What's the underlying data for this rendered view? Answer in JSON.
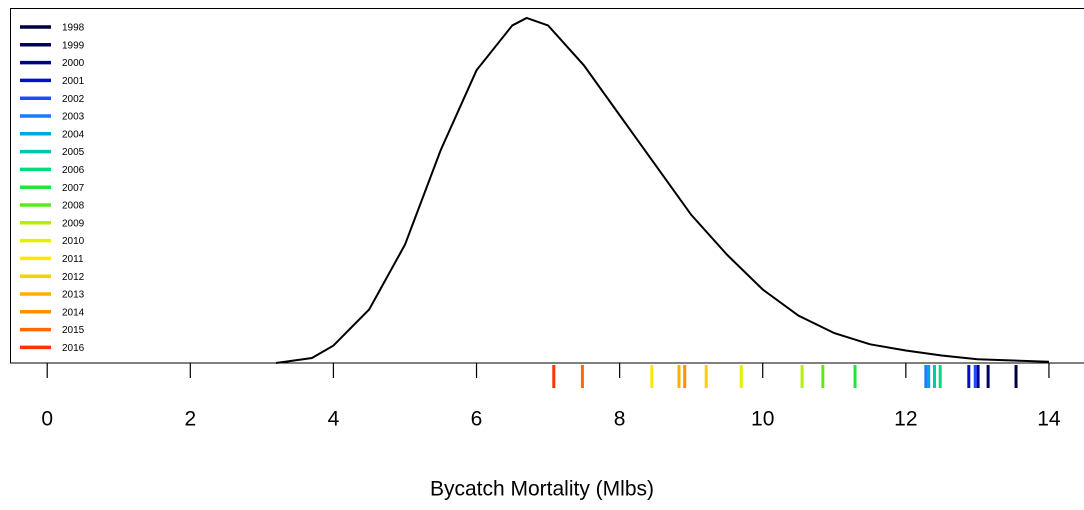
{
  "chart_data": {
    "type": "density",
    "x_label": "Bycatch Mortality (Mlbs)",
    "xlim": [
      -0.52,
      14.49
    ],
    "xticks": [
      0,
      2,
      4,
      6,
      8,
      10,
      12,
      14
    ],
    "ylim": [
      0,
      0.285
    ],
    "color": "#000000",
    "x": [
      3.2,
      3.7,
      4,
      4.5,
      5,
      5.5,
      6,
      6.5,
      6.7,
      7,
      7.5,
      8,
      8.5,
      9,
      9.5,
      10,
      10.5,
      11,
      11.5,
      12,
      12.5,
      13,
      13.5,
      14
    ],
    "values": [
      0,
      0.004,
      0.014,
      0.043,
      0.095,
      0.171,
      0.235,
      0.271,
      0.277,
      0.271,
      0.239,
      0.199,
      0.159,
      0.119,
      0.087,
      0.059,
      0.038,
      0.024,
      0.015,
      0.01,
      0.006,
      0.003,
      0.002,
      0.001
    ],
    "legend_position": "top-left",
    "rug": [
      {
        "name": "1998",
        "color": "#00003f",
        "values": [
          13.54
        ]
      },
      {
        "name": "1999",
        "color": "#00005e",
        "values": [
          13.15
        ]
      },
      {
        "name": "2000",
        "color": "#00008a",
        "values": [
          13.01
        ]
      },
      {
        "name": "2001",
        "color": "#0010c8",
        "values": [
          12.88
        ]
      },
      {
        "name": "2002",
        "color": "#1850ff",
        "values": [
          12.97
        ]
      },
      {
        "name": "2003",
        "color": "#1a7cff",
        "values": [
          12.28
        ]
      },
      {
        "name": "2004",
        "color": "#00a4e4",
        "values": [
          12.32
        ]
      },
      {
        "name": "2005",
        "color": "#00c4b4",
        "values": [
          12.4
        ]
      },
      {
        "name": "2006",
        "color": "#00dc7c",
        "values": [
          12.48
        ]
      },
      {
        "name": "2007",
        "color": "#1ee63c",
        "values": [
          11.29
        ]
      },
      {
        "name": "2008",
        "color": "#5ee81e",
        "values": [
          10.84
        ]
      },
      {
        "name": "2009",
        "color": "#b4f000",
        "values": [
          10.55
        ]
      },
      {
        "name": "2010",
        "color": "#e4f000",
        "values": [
          9.7
        ]
      },
      {
        "name": "2011",
        "color": "#ffe800",
        "values": [
          8.45
        ]
      },
      {
        "name": "2012",
        "color": "#ffd000",
        "values": [
          9.21
        ]
      },
      {
        "name": "2013",
        "color": "#ffb000",
        "values": [
          8.83
        ]
      },
      {
        "name": "2014",
        "color": "#ff9000",
        "values": [
          8.91
        ]
      },
      {
        "name": "2015",
        "color": "#ff6a00",
        "values": [
          7.48
        ]
      },
      {
        "name": "2016",
        "color": "#ff3400",
        "values": [
          7.08
        ]
      }
    ]
  }
}
